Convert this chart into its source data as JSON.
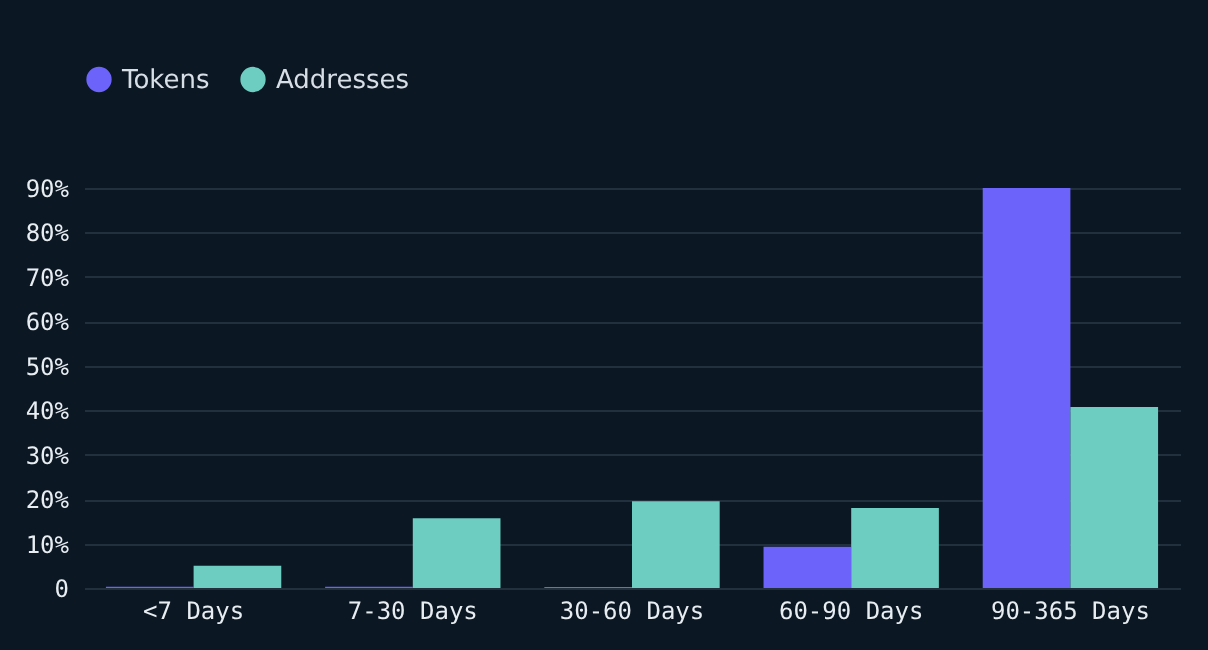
{
  "chart_data": {
    "type": "bar",
    "categories": [
      "<7 Days",
      "7-30 Days",
      "30-60 Days",
      "60-90 Days",
      "90-365 Days"
    ],
    "series": [
      {
        "name": "Tokens",
        "color": "#6c63fa",
        "values": [
          0.3,
          0.3,
          0.2,
          9.3,
          90
        ]
      },
      {
        "name": "Addresses",
        "color": "#6dcdc1",
        "values": [
          5,
          15.7,
          19.5,
          18,
          40.7
        ]
      }
    ],
    "ylim": [
      0,
      90
    ],
    "yticks": [
      0,
      {
        "value": 10,
        "label": "10%"
      },
      {
        "value": 20,
        "label": "20%"
      },
      {
        "value": 30,
        "label": "30%"
      },
      {
        "value": 40,
        "label": "40%"
      },
      {
        "value": 50,
        "label": "50%"
      },
      {
        "value": 60,
        "label": "60%"
      },
      {
        "value": 70,
        "label": "70%"
      },
      {
        "value": 80,
        "label": "80%"
      },
      {
        "value": 90,
        "label": "90%"
      }
    ],
    "grid": "y",
    "legend": "top left"
  }
}
